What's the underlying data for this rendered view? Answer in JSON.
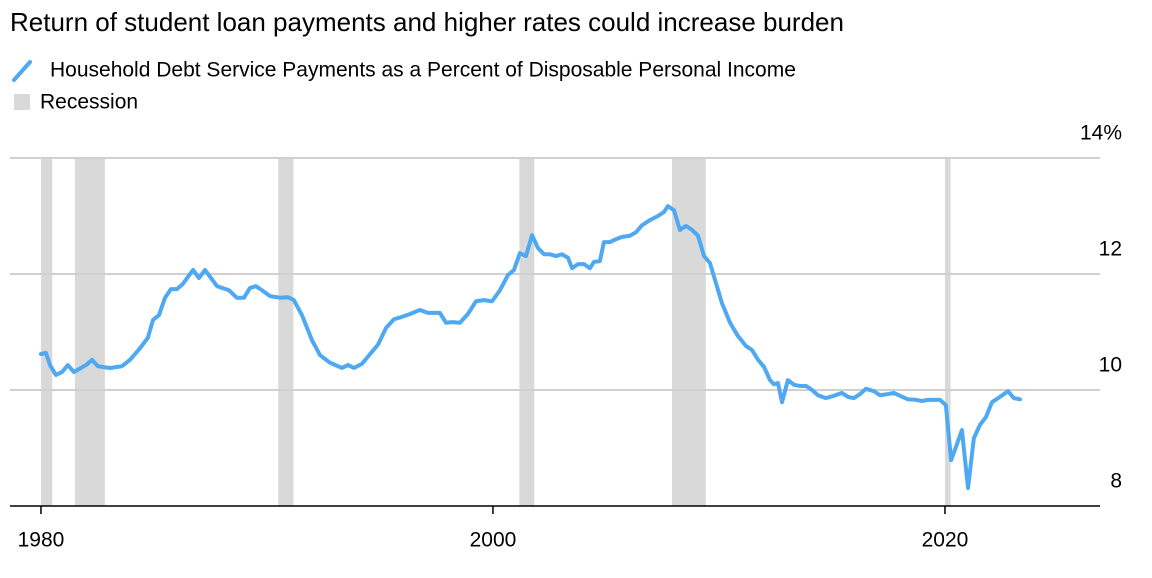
{
  "chart_data": {
    "type": "line",
    "title": "Return of student loan payments and higher rates could increase burden",
    "xlim": [
      1978.63,
      2026.86
    ],
    "ylim": [
      8,
      14
    ],
    "xticks": [
      1980,
      2000,
      2020
    ],
    "yticks": [
      8,
      10,
      12,
      {
        "value": 14,
        "label": "14%"
      }
    ],
    "grid": true,
    "recession_label": "Recession",
    "recession_color": "#d9d9d9",
    "recessions": [
      {
        "start": 1980.0,
        "end": 1980.5
      },
      {
        "start": 1981.5,
        "end": 1982.83
      },
      {
        "start": 1990.5,
        "end": 1991.17
      },
      {
        "start": 2001.17,
        "end": 2001.83
      },
      {
        "start": 2007.92,
        "end": 2009.42
      },
      {
        "start": 2020.0,
        "end": 2020.25
      }
    ],
    "series": [
      {
        "name": "Household Debt Service Payments as a Percent of Disposable Personal Income",
        "color": "#4ea9f2",
        "x": [
          1980.0,
          1980.22,
          1980.4,
          1980.66,
          1980.93,
          1981.19,
          1981.46,
          1981.99,
          1982.26,
          1982.52,
          1983.05,
          1983.58,
          1983.94,
          1984.38,
          1984.73,
          1984.96,
          1985.22,
          1985.49,
          1985.75,
          1986.02,
          1986.28,
          1986.73,
          1986.99,
          1987.26,
          1987.79,
          1988.32,
          1988.67,
          1988.98,
          1989.25,
          1989.51,
          1989.78,
          1990.13,
          1990.58,
          1990.93,
          1991.19,
          1991.55,
          1991.99,
          1992.35,
          1992.79,
          1993.32,
          1993.58,
          1993.85,
          1994.2,
          1994.65,
          1994.91,
          1995.27,
          1995.62,
          1995.97,
          1996.33,
          1996.77,
          1997.12,
          1997.65,
          1997.92,
          1998.19,
          1998.54,
          1998.89,
          1999.25,
          1999.6,
          1999.96,
          2000.31,
          2000.66,
          2000.93,
          2001.19,
          2001.46,
          2001.73,
          2001.99,
          2002.26,
          2002.52,
          2002.79,
          2003.05,
          2003.32,
          2003.5,
          2003.76,
          2004.03,
          2004.29,
          2004.47,
          2004.73,
          2004.91,
          2005.18,
          2005.44,
          2005.71,
          2006.06,
          2006.33,
          2006.59,
          2006.95,
          2007.3,
          2007.57,
          2007.74,
          2008.01,
          2008.27,
          2008.54,
          2008.81,
          2009.07,
          2009.34,
          2009.6,
          2009.87,
          2010.13,
          2010.49,
          2010.84,
          2011.19,
          2011.46,
          2011.73,
          2011.99,
          2012.26,
          2012.43,
          2012.61,
          2012.79,
          2013.05,
          2013.32,
          2013.58,
          2013.85,
          2014.12,
          2014.38,
          2014.73,
          2015.09,
          2015.44,
          2015.71,
          2015.97,
          2016.24,
          2016.5,
          2016.86,
          2017.12,
          2017.48,
          2017.74,
          2018.01,
          2018.36,
          2018.72,
          2018.98,
          2019.25,
          2019.51,
          2019.78,
          2020.04,
          2020.27,
          2020.49,
          2020.75,
          2021.02,
          2021.28,
          2021.55,
          2021.81,
          2022.08,
          2022.35,
          2022.61,
          2022.79,
          2023.05,
          2023.32
        ],
        "values": [
          10.62,
          10.64,
          10.43,
          10.26,
          10.31,
          10.43,
          10.31,
          10.43,
          10.52,
          10.41,
          10.38,
          10.41,
          10.52,
          10.72,
          10.9,
          11.21,
          11.29,
          11.59,
          11.74,
          11.74,
          11.83,
          12.07,
          11.93,
          12.07,
          11.79,
          11.72,
          11.59,
          11.59,
          11.76,
          11.79,
          11.72,
          11.62,
          11.59,
          11.6,
          11.55,
          11.29,
          10.86,
          10.6,
          10.47,
          10.38,
          10.43,
          10.38,
          10.45,
          10.66,
          10.78,
          11.07,
          11.22,
          11.26,
          11.31,
          11.38,
          11.33,
          11.33,
          11.16,
          11.17,
          11.16,
          11.31,
          11.53,
          11.55,
          11.53,
          11.72,
          11.98,
          12.07,
          12.36,
          12.31,
          12.67,
          12.45,
          12.34,
          12.34,
          12.31,
          12.34,
          12.28,
          12.1,
          12.17,
          12.17,
          12.1,
          12.21,
          12.22,
          12.55,
          12.55,
          12.6,
          12.64,
          12.66,
          12.72,
          12.84,
          12.93,
          13.0,
          13.07,
          13.17,
          13.1,
          12.76,
          12.83,
          12.76,
          12.66,
          12.31,
          12.19,
          11.84,
          11.5,
          11.16,
          10.93,
          10.76,
          10.69,
          10.52,
          10.4,
          10.17,
          10.1,
          10.12,
          9.79,
          10.17,
          10.09,
          10.07,
          10.07,
          10.0,
          9.91,
          9.86,
          9.9,
          9.95,
          9.88,
          9.86,
          9.93,
          10.02,
          9.98,
          9.91,
          9.93,
          9.95,
          9.9,
          9.84,
          9.83,
          9.81,
          9.83,
          9.83,
          9.83,
          9.74,
          8.79,
          9.02,
          9.31,
          8.31,
          9.17,
          9.4,
          9.53,
          9.79,
          9.86,
          9.93,
          9.98,
          9.86,
          9.84
        ]
      }
    ]
  }
}
